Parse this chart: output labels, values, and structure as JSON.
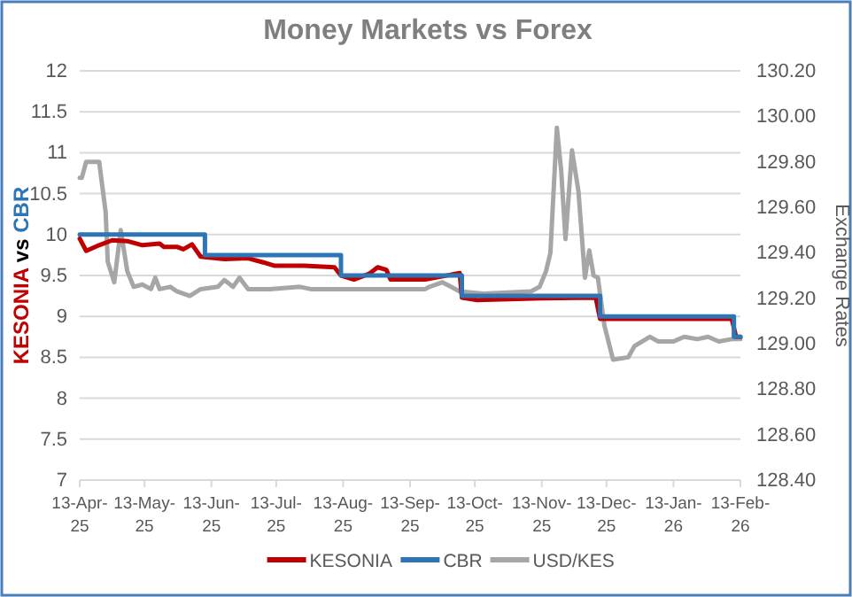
{
  "chart_data": {
    "type": "line",
    "title": "Money Markets vs Forex",
    "ylabel": "KESONIA vs CBR",
    "y2label": "Exchange Rates",
    "xlim": [
      "2025-04-13",
      "2026-02-13"
    ],
    "xticks": [
      {
        "value": "2025-04-13",
        "label": "13-Apr-25"
      },
      {
        "value": "2025-05-13",
        "label": "13-May-25"
      },
      {
        "value": "2025-06-13",
        "label": "13-Jun-25"
      },
      {
        "value": "2025-07-13",
        "label": "13-Jul-25"
      },
      {
        "value": "2025-08-13",
        "label": "13-Aug-25"
      },
      {
        "value": "2025-09-13",
        "label": "13-Sep-25"
      },
      {
        "value": "2025-10-13",
        "label": "13-Oct-25"
      },
      {
        "value": "2025-11-13",
        "label": "13-Nov-25"
      },
      {
        "value": "2025-12-13",
        "label": "13-Dec-25"
      },
      {
        "value": "2026-01-13",
        "label": "13-Jan-26"
      },
      {
        "value": "2026-02-13",
        "label": "13-Feb-26"
      }
    ],
    "ylim": [
      7,
      12
    ],
    "yticks": [
      7,
      7.5,
      8,
      8.5,
      9,
      9.5,
      10,
      10.5,
      11,
      11.5,
      12
    ],
    "y2lim": [
      128.4,
      130.2
    ],
    "y2ticks": [
      {
        "value": 128.4,
        "label": "128.40"
      },
      {
        "value": 128.6,
        "label": "128.60"
      },
      {
        "value": 128.8,
        "label": "128.80"
      },
      {
        "value": 129.0,
        "label": "129.00"
      },
      {
        "value": 129.2,
        "label": "129.20"
      },
      {
        "value": 129.4,
        "label": "129.40"
      },
      {
        "value": 129.6,
        "label": "129.60"
      },
      {
        "value": 129.8,
        "label": "129.80"
      },
      {
        "value": 130.0,
        "label": "130.00"
      },
      {
        "value": 130.2,
        "label": "130.20"
      }
    ],
    "grid": "y",
    "legend": "bottom",
    "marker": "none",
    "series": [
      {
        "name": "KESONIA",
        "color": "#c00000",
        "x": [
          "2025-04-13",
          "2025-04-16",
          "2025-04-22",
          "2025-04-28",
          "2025-05-05",
          "2025-05-12",
          "2025-05-20",
          "2025-05-22",
          "2025-05-28",
          "2025-05-31",
          "2025-06-04",
          "2025-06-08",
          "2025-06-19",
          "2025-06-30",
          "2025-07-07",
          "2025-07-12",
          "2025-07-26",
          "2025-08-09",
          "2025-08-12",
          "2025-08-18",
          "2025-08-25",
          "2025-08-29",
          "2025-09-02",
          "2025-09-04",
          "2025-09-20",
          "2025-10-06",
          "2025-10-07",
          "2025-10-14",
          "2025-11-13",
          "2025-12-08",
          "2025-12-10",
          "2026-01-07",
          "2026-02-09",
          "2026-02-11",
          "2026-02-13"
        ],
        "values": [
          9.95,
          9.8,
          9.87,
          9.93,
          9.92,
          9.87,
          9.89,
          9.85,
          9.85,
          9.82,
          9.88,
          9.73,
          9.7,
          9.71,
          9.66,
          9.62,
          9.62,
          9.6,
          9.5,
          9.45,
          9.52,
          9.6,
          9.57,
          9.45,
          9.45,
          9.53,
          9.23,
          9.2,
          9.22,
          9.23,
          8.97,
          8.97,
          8.97,
          8.75,
          8.75
        ]
      },
      {
        "name": "CBR",
        "color": "#2e75b6",
        "type": "step",
        "x": [
          "2025-04-13",
          "2025-06-10",
          "2025-08-12",
          "2025-10-07",
          "2025-12-10",
          "2026-02-10",
          "2026-02-13"
        ],
        "values": [
          10,
          9.75,
          9.5,
          9.25,
          9.0,
          8.75,
          8.75
        ]
      },
      {
        "name": "USD/KES",
        "color": "#a6a6a6",
        "axis": "y2",
        "x": [
          "2025-04-13",
          "2025-04-14",
          "2025-04-16",
          "2025-04-22",
          "2025-04-25",
          "2025-04-26",
          "2025-04-29",
          "2025-05-02",
          "2025-05-05",
          "2025-05-08",
          "2025-05-12",
          "2025-05-16",
          "2025-05-18",
          "2025-05-20",
          "2025-05-25",
          "2025-05-28",
          "2025-06-03",
          "2025-06-08",
          "2025-06-16",
          "2025-06-19",
          "2025-06-23",
          "2025-06-26",
          "2025-06-30",
          "2025-07-10",
          "2025-07-24",
          "2025-07-29",
          "2025-08-18",
          "2025-09-20",
          "2025-09-22",
          "2025-09-28",
          "2025-10-06",
          "2025-10-17",
          "2025-11-08",
          "2025-11-12",
          "2025-11-15",
          "2025-11-17",
          "2025-11-20",
          "2025-11-22",
          "2025-11-24",
          "2025-11-27",
          "2025-11-30",
          "2025-12-03",
          "2025-12-05",
          "2025-12-07",
          "2025-12-09",
          "2025-12-12",
          "2025-12-16",
          "2025-12-23",
          "2025-12-26",
          "2026-01-02",
          "2026-01-06",
          "2026-01-13",
          "2026-01-18",
          "2026-01-24",
          "2026-01-29",
          "2026-02-03",
          "2026-02-09",
          "2026-02-13"
        ],
        "values": [
          129.73,
          129.73,
          129.8,
          129.8,
          129.58,
          129.36,
          129.27,
          129.5,
          129.32,
          129.25,
          129.26,
          129.24,
          129.29,
          129.24,
          129.25,
          129.23,
          129.21,
          129.24,
          129.25,
          129.28,
          129.25,
          129.29,
          129.24,
          129.24,
          129.25,
          129.24,
          129.24,
          129.24,
          129.25,
          129.27,
          129.23,
          129.22,
          129.23,
          129.25,
          129.32,
          129.4,
          129.95,
          129.76,
          129.46,
          129.85,
          129.67,
          129.29,
          129.41,
          129.3,
          129.29,
          129.08,
          128.93,
          128.94,
          128.99,
          129.03,
          129.01,
          129.01,
          129.03,
          129.02,
          129.03,
          129.01,
          129.02,
          129.02
        ]
      }
    ]
  }
}
